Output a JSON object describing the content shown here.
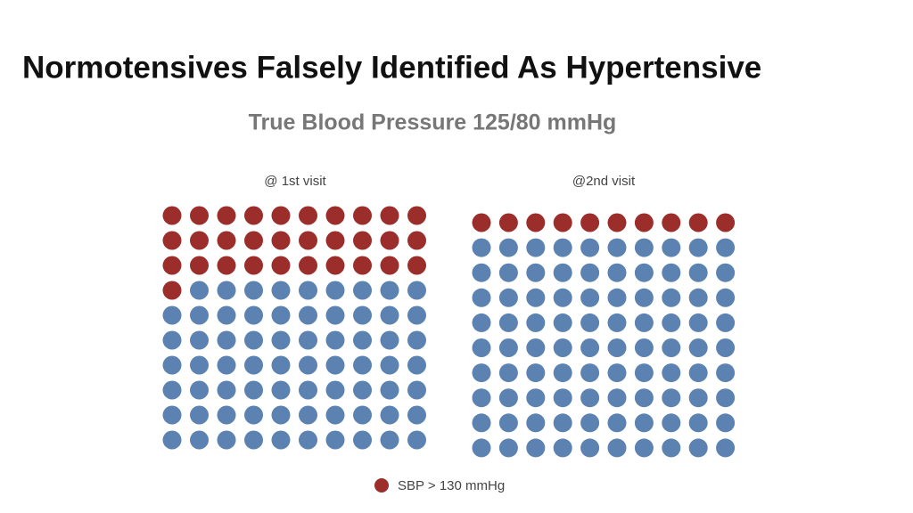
{
  "title": "Normotensives Falsely Identified As Hypertensive",
  "subtitle": "True Blood Pressure 125/80 mmHg",
  "legend": {
    "label": "SBP > 130 mmHg",
    "color": "#9b2d2b"
  },
  "chart_data": [
    {
      "type": "waffle",
      "title": "@ 1st visit",
      "categories": [
        "SBP > 130 mmHg",
        null
      ],
      "values": [
        31,
        69
      ],
      "colors": [
        "#9b2d2b",
        "#5b82b0"
      ]
    },
    {
      "type": "waffle",
      "title": "@2nd visit",
      "categories": [
        "SBP > 130 mmHg",
        null
      ],
      "values": [
        10,
        90
      ],
      "colors": [
        "#9b2d2b",
        "#5b82b0"
      ]
    }
  ]
}
